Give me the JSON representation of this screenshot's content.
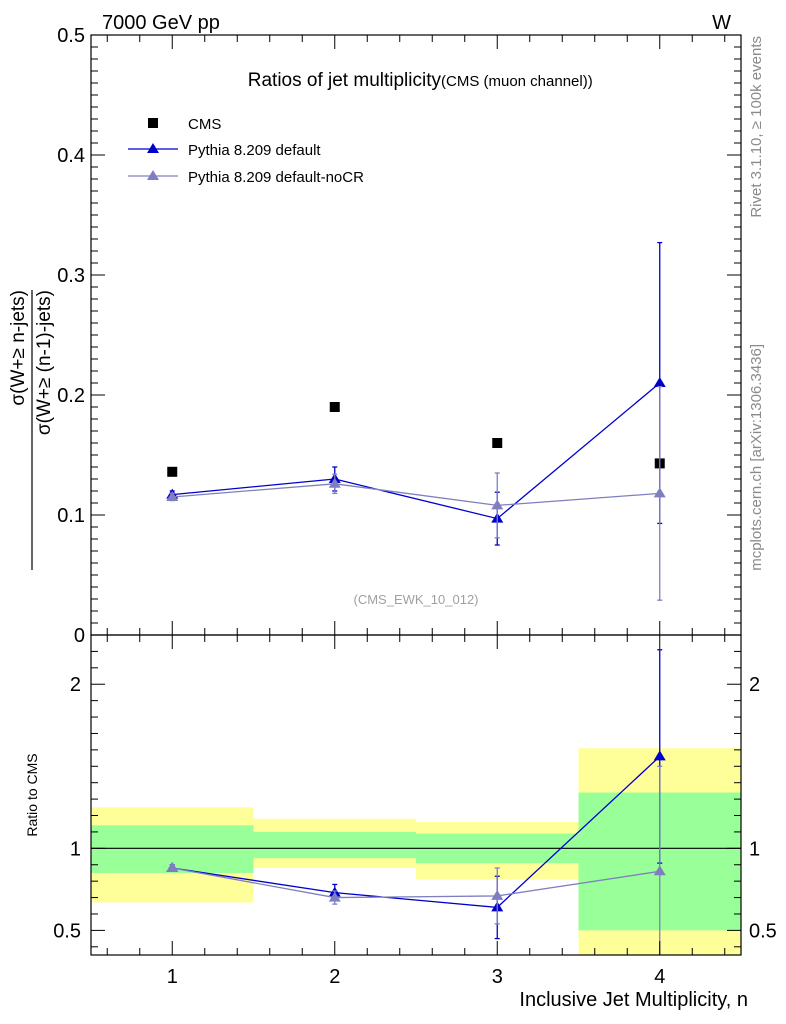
{
  "header": {
    "energy": "7000 GeV pp",
    "process": "W"
  },
  "side_labels": {
    "rivet": "Rivet 3.1.10, ≥ 100k events",
    "mcplots": "mcplots.cern.ch [arXiv:1306.3436]"
  },
  "colors": {
    "cms": "#000000",
    "default": "#0000cc",
    "nocr": "#7f7fbf",
    "band_inner": "#99ff99",
    "band_outer": "#ffff99"
  },
  "chart_data": [
    {
      "type": "scatter",
      "title": "Ratios of jet multiplicity",
      "subtitle": "(CMS (muon channel))",
      "watermark": "(CMS_EWK_10_012)",
      "ylabel_num": "σ(W+≥ n-jets)",
      "ylabel_den": "σ(W+≥ (n-1)-jets)",
      "ylim": [
        0,
        0.5
      ],
      "yticks": [
        {
          "v": 0,
          "label": "0"
        },
        {
          "v": 0.1,
          "label": "0.1"
        },
        {
          "v": 0.2,
          "label": "0.2"
        },
        {
          "v": 0.3,
          "label": "0.3"
        },
        {
          "v": 0.4,
          "label": "0.4"
        },
        {
          "v": 0.5,
          "label": "0.5"
        }
      ],
      "xlim": [
        0.5,
        4.5
      ],
      "legend_position": "top-left",
      "series": [
        {
          "name": "CMS",
          "key": "cms",
          "marker": "square",
          "line": false,
          "x": [
            1,
            2,
            3,
            4
          ],
          "y": [
            0.136,
            0.19,
            0.16,
            0.143
          ]
        },
        {
          "name": "Pythia 8.209 default",
          "key": "default",
          "marker": "triangle",
          "line": true,
          "x": [
            1,
            2,
            3,
            4
          ],
          "y": [
            0.117,
            0.13,
            0.097,
            0.21
          ],
          "err": [
            0.003,
            0.01,
            0.022,
            0.117
          ]
        },
        {
          "name": "Pythia 8.209 default-noCR",
          "key": "nocr",
          "marker": "triangle",
          "line": true,
          "x": [
            1,
            2,
            3,
            4
          ],
          "y": [
            0.115,
            0.126,
            0.108,
            0.118
          ],
          "err": [
            0.003,
            0.008,
            0.027,
            0.089
          ]
        }
      ]
    },
    {
      "type": "scatter",
      "ylabel": "Ratio to CMS",
      "xlabel": "Inclusive Jet Multiplicity, n",
      "ylim": [
        0.35,
        2.3
      ],
      "xlim": [
        0.5,
        4.5
      ],
      "xticks": [
        {
          "v": 1,
          "label": "1"
        },
        {
          "v": 2,
          "label": "2"
        },
        {
          "v": 3,
          "label": "3"
        },
        {
          "v": 4,
          "label": "4"
        }
      ],
      "yticks": [
        {
          "v": 0.5,
          "label": "0.5"
        },
        {
          "v": 1,
          "label": "1"
        },
        {
          "v": 2,
          "label": "2"
        }
      ],
      "reference": 1,
      "bands": [
        {
          "x0": 0.5,
          "x1": 1.5,
          "inner": [
            0.85,
            1.14
          ],
          "outer": [
            0.67,
            1.25
          ]
        },
        {
          "x0": 1.5,
          "x1": 2.5,
          "inner": [
            0.94,
            1.1
          ],
          "outer": [
            0.88,
            1.18
          ]
        },
        {
          "x0": 2.5,
          "x1": 3.5,
          "inner": [
            0.91,
            1.09
          ],
          "outer": [
            0.81,
            1.16
          ]
        },
        {
          "x0": 3.5,
          "x1": 4.5,
          "inner": [
            0.5,
            1.34
          ],
          "outer": [
            0.35,
            1.61
          ]
        }
      ],
      "series": [
        {
          "name": "Pythia 8.209 default",
          "key": "default",
          "x": [
            1,
            2,
            3,
            4
          ],
          "y": [
            0.88,
            0.73,
            0.64,
            1.56
          ],
          "err": [
            0.02,
            0.05,
            0.19,
            0.65
          ]
        },
        {
          "name": "Pythia 8.209 default-noCR",
          "key": "nocr",
          "x": [
            1,
            2,
            3,
            4
          ],
          "y": [
            0.88,
            0.7,
            0.71,
            0.86
          ],
          "err": [
            0.02,
            0.04,
            0.17,
            0.64
          ]
        }
      ]
    }
  ]
}
